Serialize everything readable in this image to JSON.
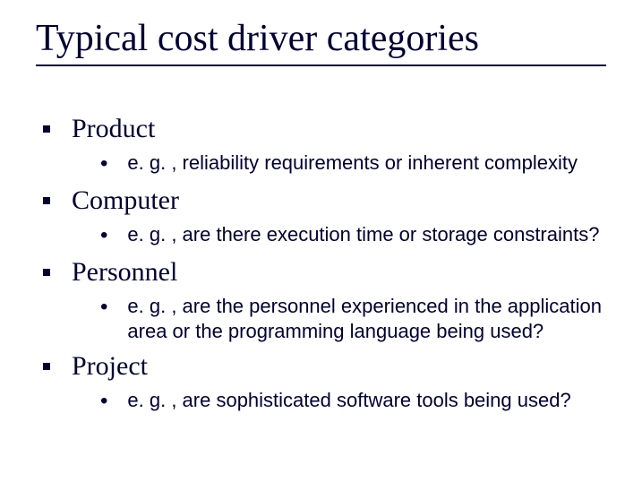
{
  "title": "Typical cost driver categories",
  "items": [
    {
      "label": "Product",
      "sub": "e. g. , reliability requirements or inherent complexity"
    },
    {
      "label": "Computer",
      "sub": "e. g. , are there execution time or storage constraints?"
    },
    {
      "label": "Personnel",
      "sub": "e. g. , are the personnel experienced in the application area or the programming language being used?"
    },
    {
      "label": "Project",
      "sub": "e. g. , are sophisticated software tools being used?"
    }
  ],
  "colors": {
    "text": "#000033",
    "background": "#ffffff",
    "rule": "#000033"
  },
  "typography": {
    "title_fontsize": 42,
    "l1_fontsize": 30,
    "l2_fontsize": 22,
    "title_family": "Times New Roman",
    "l1_family": "Times New Roman",
    "l2_family": "Arial"
  }
}
